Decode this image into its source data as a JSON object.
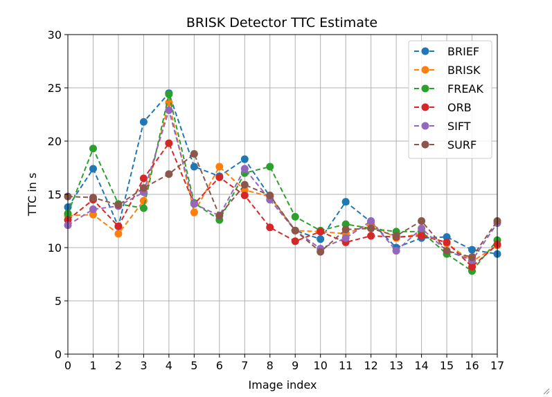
{
  "chart_data": {
    "type": "line",
    "title": "BRISK Detector TTC Estimate",
    "xlabel": "Image index",
    "ylabel": "TTC in s",
    "xlim": [
      0,
      17
    ],
    "ylim": [
      0,
      30
    ],
    "x_ticks": [
      "0",
      "1",
      "2",
      "3",
      "4",
      "5",
      "6",
      "7",
      "8",
      "9",
      "10",
      "11",
      "12",
      "13",
      "14",
      "15",
      "16",
      "17"
    ],
    "y_ticks": [
      "0",
      "5",
      "10",
      "15",
      "20",
      "25",
      "30"
    ],
    "grid": true,
    "legend_position": "upper-right",
    "line_style": "dashed",
    "marker": "circle",
    "x": [
      0,
      1,
      2,
      3,
      4,
      5,
      6,
      7,
      8,
      9,
      10,
      11,
      12,
      13,
      14,
      15,
      16,
      17
    ],
    "series": [
      {
        "name": "BRIEF",
        "color": "#1f77b4",
        "values": [
          13.8,
          17.4,
          12.0,
          21.8,
          24.5,
          17.6,
          16.7,
          18.3,
          14.8,
          11.6,
          10.8,
          14.3,
          12.4,
          10.0,
          10.9,
          11.0,
          9.8,
          9.4
        ]
      },
      {
        "name": "BRISK",
        "color": "#ff7f0e",
        "values": [
          13.0,
          13.1,
          11.3,
          14.4,
          23.6,
          13.3,
          17.6,
          15.4,
          14.8,
          11.6,
          11.5,
          11.3,
          12.2,
          10.9,
          11.3,
          10.4,
          8.7,
          10.2
        ]
      },
      {
        "name": "FREAK",
        "color": "#2ca02c",
        "values": [
          13.2,
          19.3,
          14.1,
          13.7,
          24.4,
          14.2,
          12.6,
          17.0,
          17.6,
          12.9,
          11.6,
          12.2,
          11.8,
          11.5,
          11.5,
          9.4,
          7.8,
          10.7
        ]
      },
      {
        "name": "ORB",
        "color": "#d62728",
        "values": [
          12.6,
          14.5,
          12.0,
          16.5,
          19.8,
          14.1,
          16.6,
          14.9,
          11.9,
          10.6,
          11.5,
          10.5,
          11.1,
          11.0,
          11.1,
          10.5,
          8.2,
          10.3
        ]
      },
      {
        "name": "SIFT",
        "color": "#9467bd",
        "values": [
          12.1,
          13.6,
          13.9,
          15.2,
          22.9,
          14.1,
          13.0,
          17.4,
          14.5,
          11.6,
          9.9,
          10.9,
          12.5,
          9.7,
          11.8,
          9.7,
          8.8,
          12.3
        ]
      },
      {
        "name": "SURF",
        "color": "#8c564b",
        "values": [
          14.8,
          14.7,
          14.0,
          15.6,
          16.9,
          18.8,
          13.0,
          15.9,
          14.9,
          11.6,
          9.6,
          11.7,
          11.8,
          11.1,
          12.5,
          9.7,
          9.1,
          12.5
        ]
      }
    ]
  },
  "colors": {
    "grid": "#b0b0b0",
    "axes": "#000000",
    "background": "#ffffff"
  }
}
